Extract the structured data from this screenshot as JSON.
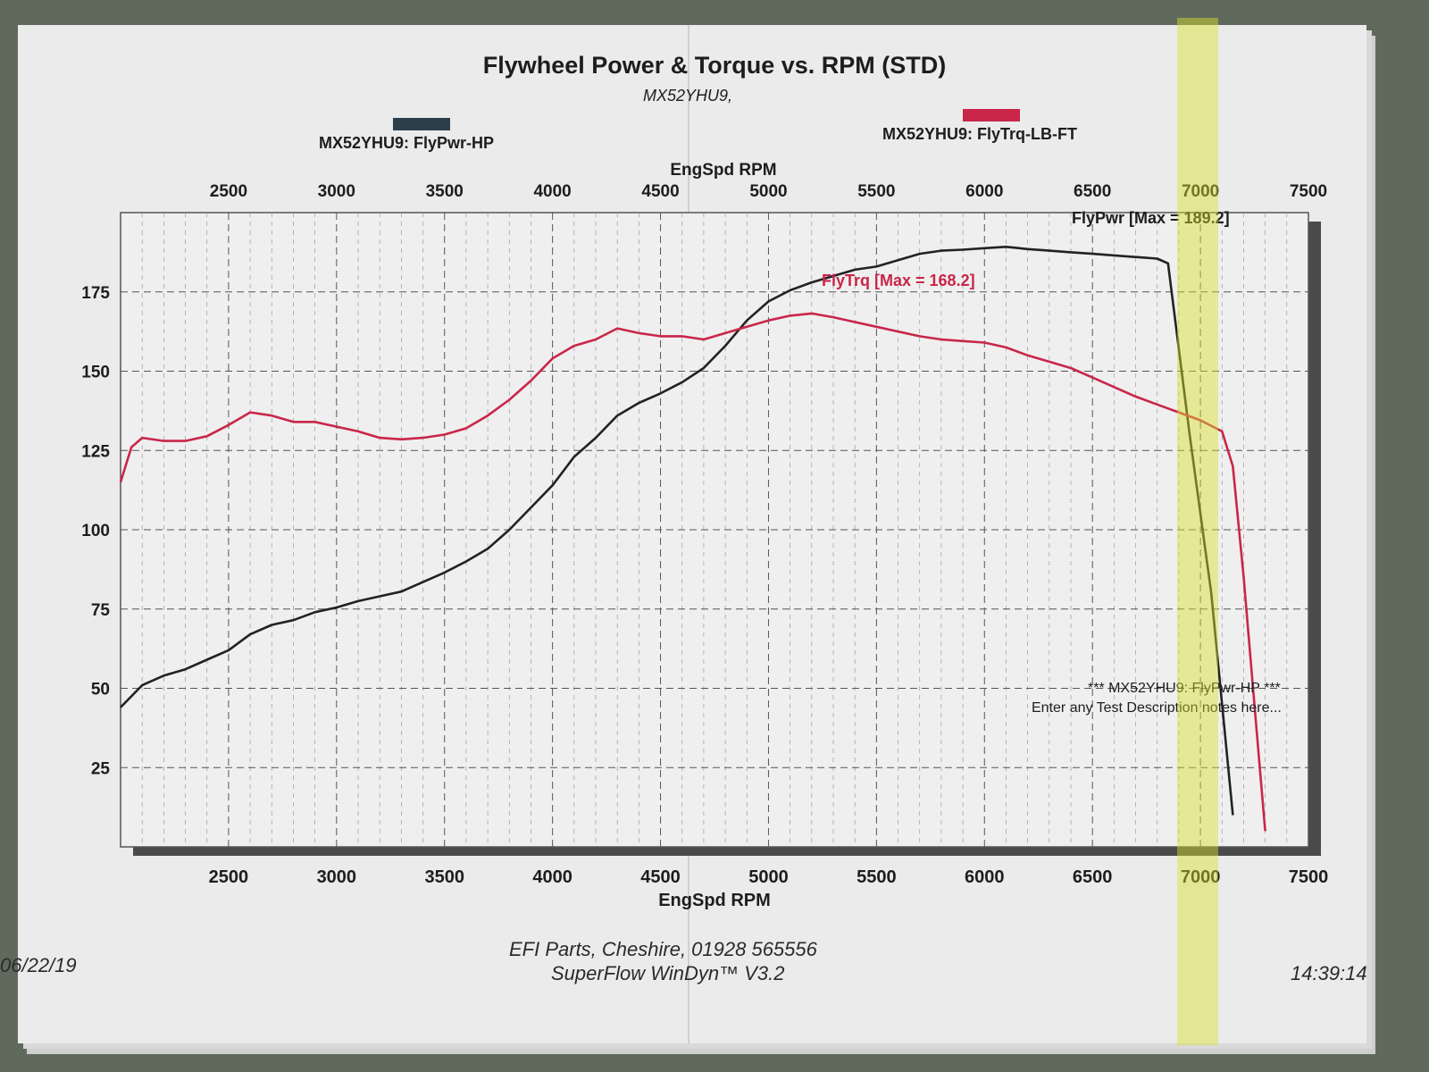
{
  "chart_data": {
    "type": "line",
    "title": "Flywheel Power & Torque vs. RPM (STD)",
    "subtitle": "MX52YHU9,",
    "xlabel": "EngSpd RPM",
    "x_ticks": [
      2500,
      3000,
      3500,
      4000,
      4500,
      5000,
      5500,
      6000,
      6500,
      7000,
      7500
    ],
    "y_ticks": [
      25,
      50,
      75,
      100,
      125,
      150,
      175
    ],
    "xlim": [
      2000,
      7500
    ],
    "ylim": [
      0,
      200
    ],
    "grid": true,
    "legend_placement": "top",
    "series": [
      {
        "name": "MX52YHU9: FlyPwr-HP",
        "color": "#222222",
        "annotation": "FlyPwr [Max = 189.2]",
        "points": [
          [
            2000,
            44
          ],
          [
            2100,
            51
          ],
          [
            2200,
            54
          ],
          [
            2300,
            56
          ],
          [
            2400,
            59
          ],
          [
            2500,
            62
          ],
          [
            2600,
            67
          ],
          [
            2700,
            70
          ],
          [
            2800,
            71.5
          ],
          [
            2900,
            74
          ],
          [
            3000,
            75.5
          ],
          [
            3100,
            77.5
          ],
          [
            3200,
            79
          ],
          [
            3300,
            80.5
          ],
          [
            3400,
            83.5
          ],
          [
            3500,
            86.5
          ],
          [
            3600,
            90
          ],
          [
            3700,
            94
          ],
          [
            3800,
            100
          ],
          [
            3900,
            107
          ],
          [
            4000,
            114
          ],
          [
            4100,
            123
          ],
          [
            4200,
            129
          ],
          [
            4300,
            136
          ],
          [
            4400,
            140
          ],
          [
            4500,
            143
          ],
          [
            4600,
            146.5
          ],
          [
            4700,
            151
          ],
          [
            4800,
            158
          ],
          [
            4900,
            166
          ],
          [
            5000,
            172
          ],
          [
            5100,
            175.5
          ],
          [
            5200,
            178
          ],
          [
            5300,
            180
          ],
          [
            5400,
            182
          ],
          [
            5500,
            183
          ],
          [
            5600,
            185
          ],
          [
            5700,
            187
          ],
          [
            5800,
            188
          ],
          [
            5900,
            188.3
          ],
          [
            6000,
            188.8
          ],
          [
            6100,
            189.2
          ],
          [
            6200,
            188.5
          ],
          [
            6300,
            188
          ],
          [
            6400,
            187.5
          ],
          [
            6500,
            187
          ],
          [
            6600,
            186.5
          ],
          [
            6700,
            186
          ],
          [
            6800,
            185.5
          ],
          [
            6850,
            184
          ],
          [
            6950,
            130
          ],
          [
            7050,
            80
          ],
          [
            7150,
            10
          ]
        ]
      },
      {
        "name": "MX52YHU9: FlyTrq-LB-FT",
        "color": "#c9264a",
        "annotation": "FlyTrq [Max = 168.2]",
        "points": [
          [
            2000,
            115
          ],
          [
            2050,
            126
          ],
          [
            2100,
            129
          ],
          [
            2200,
            128
          ],
          [
            2300,
            128
          ],
          [
            2400,
            129.5
          ],
          [
            2500,
            133
          ],
          [
            2600,
            137
          ],
          [
            2700,
            136
          ],
          [
            2800,
            134
          ],
          [
            2900,
            134
          ],
          [
            3000,
            132.5
          ],
          [
            3100,
            131
          ],
          [
            3200,
            129
          ],
          [
            3300,
            128.5
          ],
          [
            3400,
            129
          ],
          [
            3500,
            130
          ],
          [
            3600,
            132
          ],
          [
            3700,
            136
          ],
          [
            3800,
            141
          ],
          [
            3900,
            147
          ],
          [
            4000,
            154
          ],
          [
            4100,
            158
          ],
          [
            4200,
            160
          ],
          [
            4300,
            163.5
          ],
          [
            4400,
            162
          ],
          [
            4500,
            161
          ],
          [
            4600,
            161
          ],
          [
            4700,
            160
          ],
          [
            4800,
            162
          ],
          [
            4900,
            164
          ],
          [
            5000,
            166
          ],
          [
            5100,
            167.5
          ],
          [
            5200,
            168.2
          ],
          [
            5300,
            167
          ],
          [
            5400,
            165.5
          ],
          [
            5500,
            164
          ],
          [
            5600,
            162.5
          ],
          [
            5700,
            161
          ],
          [
            5800,
            160
          ],
          [
            5900,
            159.5
          ],
          [
            6000,
            159
          ],
          [
            6100,
            157.5
          ],
          [
            6200,
            155
          ],
          [
            6300,
            153
          ],
          [
            6400,
            151
          ],
          [
            6500,
            148
          ],
          [
            6600,
            145
          ],
          [
            6700,
            142
          ],
          [
            6800,
            139.5
          ],
          [
            6900,
            137
          ],
          [
            7000,
            134.5
          ],
          [
            7100,
            131
          ],
          [
            7150,
            120
          ],
          [
            7200,
            85
          ],
          [
            7250,
            45
          ],
          [
            7300,
            5
          ]
        ]
      }
    ],
    "notes": [
      "*** MX52YHU9: FlyPwr-HP ***",
      "Enter any Test Description notes here..."
    ]
  },
  "footer": {
    "line1": "EFI Parts, Cheshire, 01928 565556",
    "line2": "SuperFlow WinDyn™ V3.2",
    "date": "06/22/19",
    "time": "14:39:14"
  }
}
